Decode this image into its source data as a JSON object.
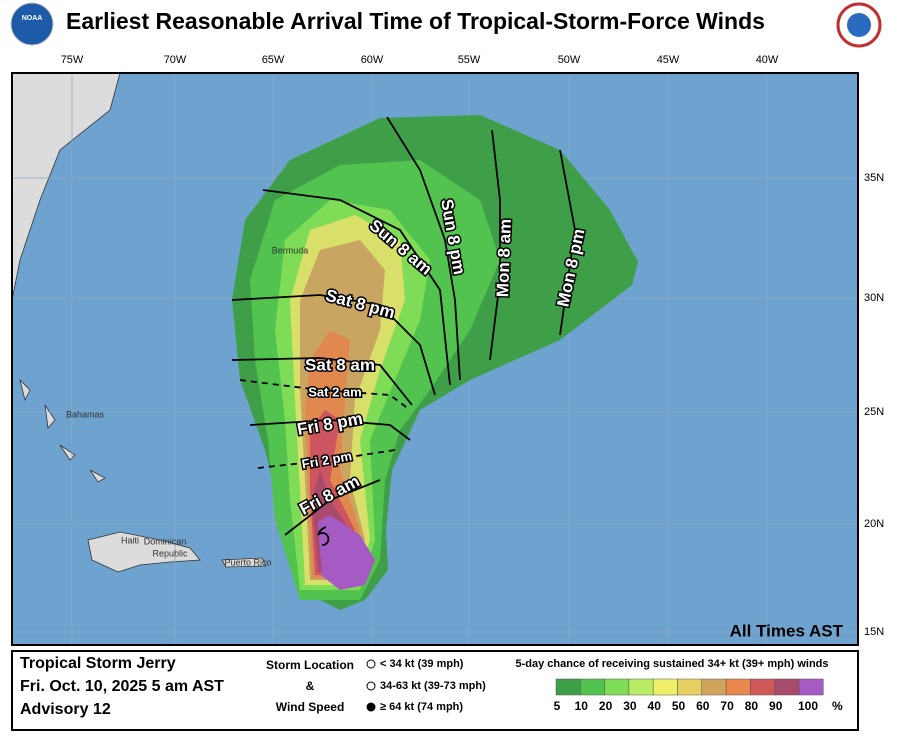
{
  "header": {
    "logo_left": "NOAA",
    "title": "Earliest Reasonable Arrival Time of Tropical-Storm-Force Winds"
  },
  "map": {
    "lon_labels": [
      "75W",
      "70W",
      "65W",
      "60W",
      "55W",
      "50W",
      "45W",
      "40W"
    ],
    "lat_labels": [
      "35N",
      "30N",
      "25N",
      "20N",
      "15N"
    ],
    "places": [
      "Bermuda",
      "Bahamas",
      "Haiti",
      "Dominican",
      "Republic",
      "Puerto Rico"
    ],
    "time_labels": [
      "Sun 8 pm",
      "Mon 8 am",
      "Mon 8 pm",
      "Sun 8 am",
      "Sat 8 pm",
      "Sat 8 am",
      "Sat 2 am",
      "Fri 8 pm",
      "Fri 2 pm",
      "Fri 8 am"
    ],
    "note": "All Times AST"
  },
  "legend": {
    "storm": [
      "Tropical Storm Jerry",
      "Fri. Oct. 10, 2025  5 am AST",
      "Advisory 12"
    ],
    "key_title": [
      "Storm Location",
      "&",
      "Wind Speed"
    ],
    "key_items": [
      "< 34 kt (39 mph)",
      "34-63 kt (39-73 mph)",
      "≥ 64 kt (74 mph)"
    ],
    "scale_title": "5-day chance of receiving sustained 34+ kt (39+ mph) winds",
    "scale_labels": [
      "5",
      "10",
      "20",
      "30",
      "40",
      "50",
      "60",
      "70",
      "80",
      "90",
      "100",
      "%"
    ],
    "scale_colors": [
      "#3f9f48",
      "#52c34f",
      "#7fdc56",
      "#b8ec62",
      "#eef06a",
      "#e6d062",
      "#d0a45c",
      "#e8884c",
      "#d05858",
      "#a84a6c",
      "#a65ac4"
    ]
  }
}
